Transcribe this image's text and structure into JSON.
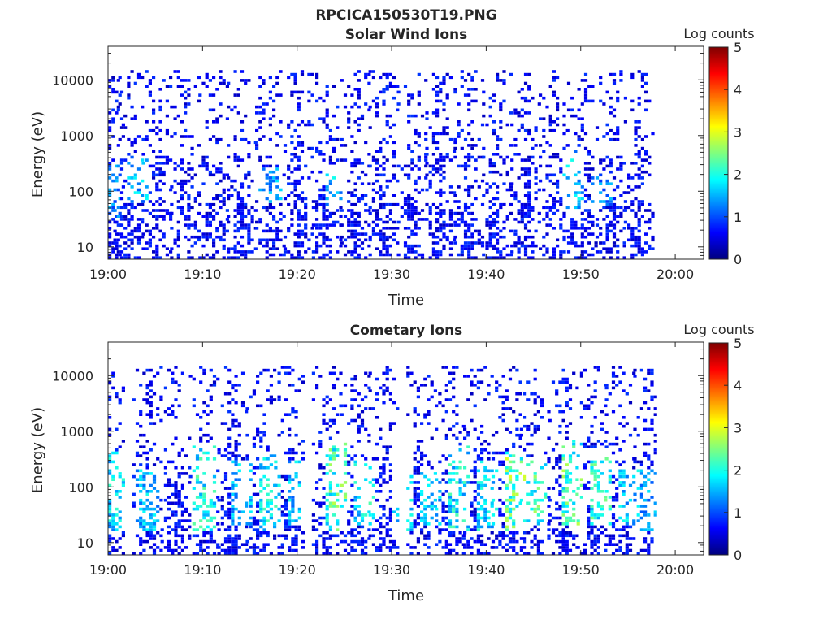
{
  "figure": {
    "title": "RPCICA150530T19.PNG"
  },
  "colors": {
    "background": "#ffffff",
    "axis": "#262626",
    "colormap": "jet",
    "colormap_stops": [
      "#00007f",
      "#0000ff",
      "#007fff",
      "#00ffff",
      "#7fff7f",
      "#ffff00",
      "#ff7f00",
      "#ff0000",
      "#7f0000"
    ]
  },
  "chart_data": [
    {
      "type": "heatmap",
      "title": "Solar Wind Ions",
      "xlabel": "Time",
      "ylabel": "Energy (eV)",
      "x_scale": "time",
      "y_scale": "log",
      "xlim": [
        "19:00",
        "20:03"
      ],
      "ylim": [
        6,
        40000
      ],
      "x_ticks": [
        "19:00",
        "19:10",
        "19:20",
        "19:30",
        "19:40",
        "19:50",
        "20:00"
      ],
      "y_ticks": [
        "10",
        "100",
        "1000",
        "10000"
      ],
      "colorbar": {
        "label": "Log counts",
        "range": [
          0,
          5
        ],
        "ticks": [
          "0",
          "1",
          "2",
          "3",
          "4",
          "5"
        ]
      },
      "data_extent": [
        "19:00",
        "19:58"
      ],
      "sweep_times": [
        "19:00",
        "19:02",
        "19:05",
        "19:08",
        "19:11",
        "19:14",
        "19:17",
        "19:20",
        "19:23",
        "19:26",
        "19:29",
        "19:32",
        "19:35",
        "19:38",
        "19:41",
        "19:44",
        "19:47",
        "19:50",
        "19:53",
        "19:56"
      ],
      "bursts": [
        {
          "time": "19:00",
          "e_lo": 30,
          "e_hi": 300,
          "level": 1.6
        },
        {
          "time": "19:03",
          "e_lo": 60,
          "e_hi": 400,
          "level": 1.9
        },
        {
          "time": "19:17",
          "e_lo": 60,
          "e_hi": 250,
          "level": 1.8
        },
        {
          "time": "19:24",
          "e_lo": 50,
          "e_hi": 300,
          "level": 2.0
        },
        {
          "time": "19:49",
          "e_lo": 40,
          "e_hi": 500,
          "level": 2.0
        },
        {
          "time": "19:52",
          "e_lo": 50,
          "e_hi": 200,
          "level": 1.6
        }
      ],
      "scatter_level": 0.3
    },
    {
      "type": "heatmap",
      "title": "Cometary Ions",
      "xlabel": "Time",
      "ylabel": "Energy (eV)",
      "x_scale": "time",
      "y_scale": "log",
      "xlim": [
        "19:00",
        "20:03"
      ],
      "ylim": [
        6,
        40000
      ],
      "x_ticks": [
        "19:00",
        "19:10",
        "19:20",
        "19:30",
        "19:40",
        "19:50",
        "20:00"
      ],
      "y_ticks": [
        "10",
        "100",
        "1000",
        "10000"
      ],
      "colorbar": {
        "label": "Log counts",
        "range": [
          0,
          5
        ],
        "ticks": [
          "0",
          "1",
          "2",
          "3",
          "4",
          "5"
        ]
      },
      "data_extent": [
        "19:00",
        "19:58"
      ],
      "sweep_times": [
        "19:00",
        "19:04",
        "19:07",
        "19:10",
        "19:13",
        "19:16",
        "19:19",
        "19:23",
        "19:26",
        "19:29",
        "19:33",
        "19:36",
        "19:39",
        "19:42",
        "19:45",
        "19:48",
        "19:51",
        "19:54",
        "19:57"
      ],
      "bursts": [
        {
          "time": "19:01",
          "e_lo": 15,
          "e_hi": 400,
          "level": 2.2
        },
        {
          "time": "19:04",
          "e_lo": 15,
          "e_hi": 200,
          "level": 2.0
        },
        {
          "time": "19:10",
          "e_lo": 15,
          "e_hi": 500,
          "level": 2.4
        },
        {
          "time": "19:14",
          "e_lo": 20,
          "e_hi": 300,
          "level": 2.0
        },
        {
          "time": "19:17",
          "e_lo": 15,
          "e_hi": 400,
          "level": 2.3
        },
        {
          "time": "19:20",
          "e_lo": 20,
          "e_hi": 300,
          "level": 2.0
        },
        {
          "time": "19:24",
          "e_lo": 15,
          "e_hi": 700,
          "level": 2.8
        },
        {
          "time": "19:27",
          "e_lo": 20,
          "e_hi": 300,
          "level": 2.3
        },
        {
          "time": "19:31",
          "e_lo": 15,
          "e_hi": 300,
          "level": 2.1
        },
        {
          "time": "19:34",
          "e_lo": 20,
          "e_hi": 200,
          "level": 2.0
        },
        {
          "time": "19:37",
          "e_lo": 15,
          "e_hi": 500,
          "level": 2.3
        },
        {
          "time": "19:40",
          "e_lo": 15,
          "e_hi": 300,
          "level": 2.2
        },
        {
          "time": "19:43",
          "e_lo": 15,
          "e_hi": 400,
          "level": 3.0
        },
        {
          "time": "19:45",
          "e_lo": 20,
          "e_hi": 300,
          "level": 2.7
        },
        {
          "time": "19:49",
          "e_lo": 20,
          "e_hi": 700,
          "level": 2.8
        },
        {
          "time": "19:52",
          "e_lo": 20,
          "e_hi": 400,
          "level": 2.6
        },
        {
          "time": "19:55",
          "e_lo": 20,
          "e_hi": 200,
          "level": 2.0
        },
        {
          "time": "19:57",
          "e_lo": 15,
          "e_hi": 200,
          "level": 1.8
        }
      ],
      "scatter_level": 0.3
    }
  ]
}
